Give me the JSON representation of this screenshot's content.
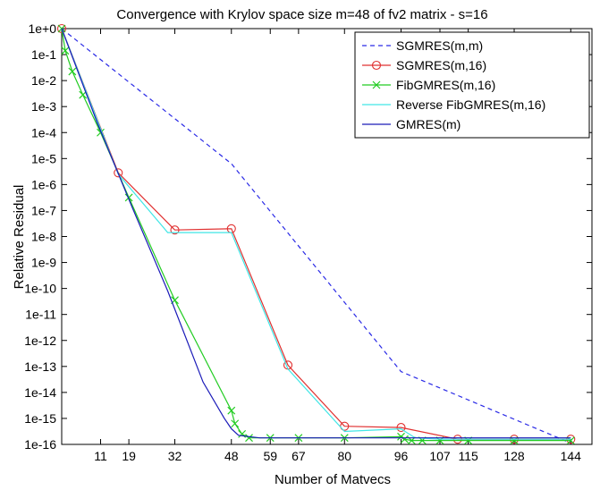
{
  "chart_data": {
    "type": "line",
    "title": "Convergence with Krylov space size m=48 of fv2 matrix - s=16",
    "xlabel": "Number of Matvecs",
    "ylabel": "Relative Residual",
    "xlim": [
      0,
      150
    ],
    "ylim_log10": [
      -16,
      0
    ],
    "log_y": true,
    "grid": false,
    "legend_position": "top-right",
    "x_ticks": [
      11,
      19,
      32,
      48,
      59,
      67,
      80,
      96,
      107,
      115,
      128,
      144
    ],
    "y_ticks": [
      "1e+0",
      "1e-1",
      "1e-2",
      "1e-3",
      "1e-4",
      "1e-5",
      "1e-6",
      "1e-7",
      "1e-8",
      "1e-9",
      "1e-10",
      "1e-11",
      "1e-12",
      "1e-13",
      "1e-14",
      "1e-15",
      "1e-16"
    ],
    "series": [
      {
        "name": "SGMRES(m,m)",
        "color": "#2a2ae6",
        "line": "dashed",
        "marker": "none",
        "x": [
          0,
          48,
          96,
          144
        ],
        "log10_y": [
          0,
          -5.2,
          -13.2,
          -15.95
        ]
      },
      {
        "name": "SGMRES(m,16)",
        "color": "#e03030",
        "line": "solid",
        "marker": "circle",
        "x": [
          0,
          16,
          32,
          48,
          64,
          80,
          96,
          112,
          128,
          144
        ],
        "log10_y": [
          0,
          -5.55,
          -7.75,
          -7.7,
          -12.95,
          -15.3,
          -15.35,
          -15.8,
          -15.8,
          -15.8
        ]
      },
      {
        "name": "FibGMRES(m,16)",
        "color": "#22cc22",
        "line": "solid",
        "marker": "x",
        "x": [
          0,
          1,
          3,
          6,
          11,
          19,
          32,
          48,
          49,
          51,
          53,
          59,
          67,
          80,
          96,
          97,
          99,
          102,
          107,
          115,
          128,
          144
        ],
        "log10_y": [
          0,
          -0.85,
          -1.65,
          -2.55,
          -4.0,
          -6.5,
          -10.45,
          -14.7,
          -15.2,
          -15.6,
          -15.75,
          -15.75,
          -15.75,
          -15.75,
          -15.7,
          -15.8,
          -15.85,
          -15.85,
          -15.85,
          -15.85,
          -15.85,
          -15.85
        ]
      },
      {
        "name": "Reverse FibGMRES(m,16)",
        "color": "#40e6e6",
        "line": "solid",
        "marker": "none",
        "x": [
          0,
          16,
          30,
          48,
          64,
          80,
          96,
          100,
          107,
          115,
          128,
          144
        ],
        "log10_y": [
          0,
          -5.6,
          -7.85,
          -7.85,
          -13.1,
          -15.5,
          -15.4,
          -15.75,
          -15.8,
          -15.8,
          -15.8,
          -15.8
        ]
      },
      {
        "name": "GMRES(m)",
        "color": "#1a1ab8",
        "line": "solid",
        "marker": "none",
        "x": [
          0,
          10,
          20,
          30,
          40,
          46,
          48,
          50,
          53,
          56,
          59,
          67,
          80,
          96,
          107,
          115,
          128,
          144
        ],
        "log10_y": [
          0,
          -3.6,
          -6.9,
          -10.1,
          -13.6,
          -15.0,
          -15.4,
          -15.65,
          -15.7,
          -15.75,
          -15.75,
          -15.75,
          -15.75,
          -15.75,
          -15.75,
          -15.75,
          -15.75,
          -15.75
        ]
      }
    ]
  }
}
